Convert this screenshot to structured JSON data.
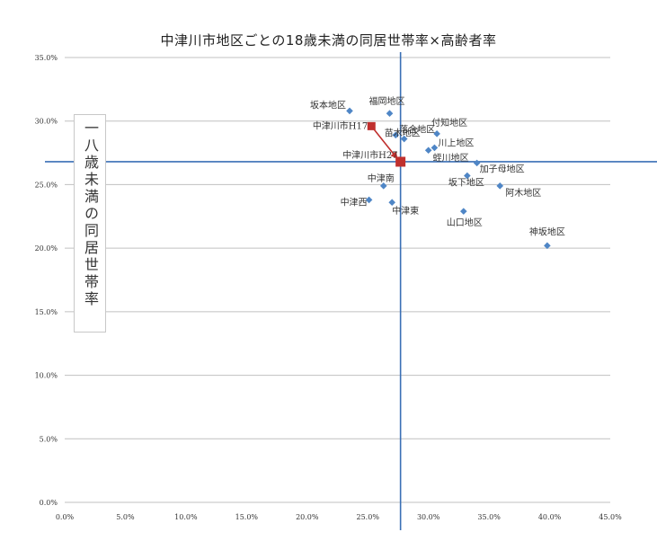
{
  "chart_data": {
    "type": "scatter",
    "title": "中津川市地区ごとの18歳未満の同居世帯率×高齢者率",
    "ylabel": "一八歳未満の同居世帯率",
    "xlabel": "",
    "xlim": [
      0,
      45
    ],
    "ylim": [
      0,
      35
    ],
    "x_ticks": [
      "0.0%",
      "5.0%",
      "10.0%",
      "15.0%",
      "20.0%",
      "25.0%",
      "30.0%",
      "35.0%",
      "40.0%",
      "45.0%"
    ],
    "y_ticks": [
      "0.0%",
      "5.0%",
      "10.0%",
      "15.0%",
      "20.0%",
      "25.0%",
      "30.0%",
      "35.0%"
    ],
    "grid": "horizontal",
    "reference_lines": {
      "x": 27.7,
      "y": 26.8
    },
    "colors": {
      "point": "#4f86c6",
      "highlight": "#c0302e",
      "refline": "#3a6fb5",
      "grid": "#c0c0c0"
    },
    "points": [
      {
        "label": "坂本地区",
        "x": 23.5,
        "y": 30.8
      },
      {
        "label": "福岡地区",
        "x": 26.8,
        "y": 30.6
      },
      {
        "label": "落合地区",
        "x": 27.3,
        "y": 28.9
      },
      {
        "label": "付知地区",
        "x": 30.7,
        "y": 29.0
      },
      {
        "label": "苗木地区",
        "x": 28.0,
        "y": 28.6
      },
      {
        "label": "川上地区",
        "x": 30.5,
        "y": 27.9
      },
      {
        "label": "蛭川地区",
        "x": 30.0,
        "y": 27.7
      },
      {
        "label": "加子母地区",
        "x": 34.0,
        "y": 26.7
      },
      {
        "label": "坂下地区",
        "x": 33.2,
        "y": 25.7
      },
      {
        "label": "阿木地区",
        "x": 35.9,
        "y": 24.9
      },
      {
        "label": "中津南",
        "x": 26.3,
        "y": 24.9
      },
      {
        "label": "中津西",
        "x": 25.1,
        "y": 23.8
      },
      {
        "label": "中津東",
        "x": 27.0,
        "y": 23.6
      },
      {
        "label": "山口地区",
        "x": 32.9,
        "y": 22.9
      },
      {
        "label": "神坂地区",
        "x": 39.8,
        "y": 20.2
      }
    ],
    "highlight_points": [
      {
        "label": "中津川市H17",
        "x": 25.3,
        "y": 29.6
      },
      {
        "label": "中津川市H27",
        "x": 27.7,
        "y": 26.8
      }
    ]
  }
}
